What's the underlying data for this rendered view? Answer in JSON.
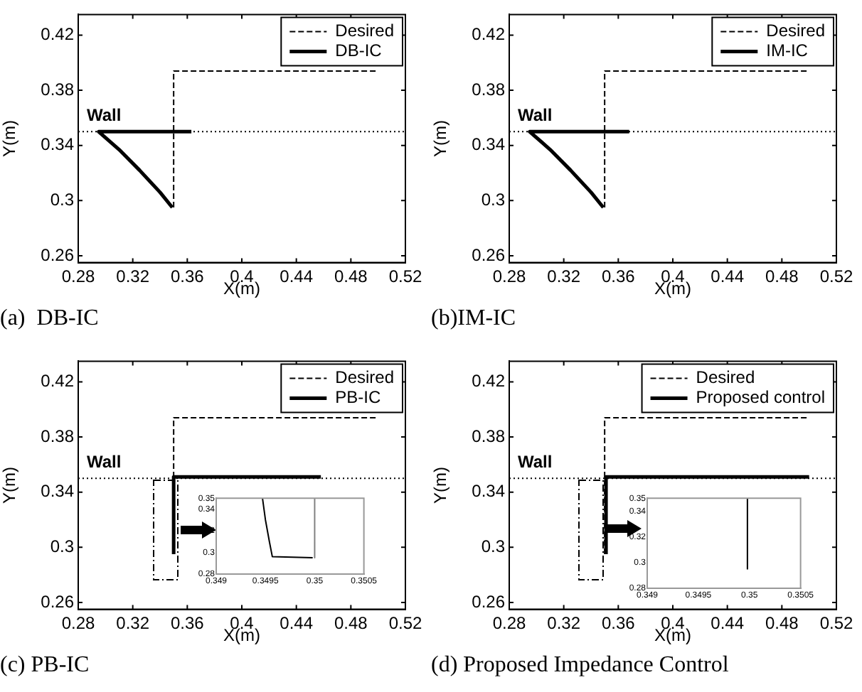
{
  "chart_data": [
    {
      "type": "line",
      "title": "(a)  DB-IC",
      "xlabel": "X(m)",
      "ylabel": "Y(m)",
      "xlim": [
        0.28,
        0.52
      ],
      "xticks": [
        0.28,
        0.32,
        0.36,
        0.4,
        0.44,
        0.48,
        0.52
      ],
      "ylim": [
        0.255,
        0.435
      ],
      "yticks": [
        0.26,
        0.3,
        0.34,
        0.38,
        0.42
      ],
      "legend": "top right",
      "ref_lines": [
        {
          "axis": "y",
          "value": 0.35,
          "label": "Wall",
          "color": "#000000",
          "line_style": "dotted"
        }
      ],
      "series": [
        {
          "name": "Desired",
          "color": "#000000",
          "line_style": "dashed",
          "x": [
            0.35,
            0.35,
            0.5
          ],
          "values": [
            0.295,
            0.394,
            0.394
          ]
        },
        {
          "name": "DB-IC",
          "color": "#000000",
          "line_style": "solid",
          "x": [
            0.349,
            0.34,
            0.325,
            0.31,
            0.295,
            0.363
          ],
          "values": [
            0.295,
            0.306,
            0.322,
            0.337,
            0.35,
            0.35
          ]
        }
      ]
    },
    {
      "type": "line",
      "title": "(b)IM-IC",
      "xlabel": "X(m)",
      "ylabel": "Y(m)",
      "xlim": [
        0.28,
        0.52
      ],
      "xticks": [
        0.28,
        0.32,
        0.36,
        0.4,
        0.44,
        0.48,
        0.52
      ],
      "ylim": [
        0.255,
        0.435
      ],
      "yticks": [
        0.26,
        0.3,
        0.34,
        0.38,
        0.42
      ],
      "legend": "top right",
      "ref_lines": [
        {
          "axis": "y",
          "value": 0.35,
          "label": "Wall",
          "color": "#000000",
          "line_style": "dotted"
        }
      ],
      "series": [
        {
          "name": "Desired",
          "color": "#000000",
          "line_style": "dashed",
          "x": [
            0.35,
            0.35,
            0.5
          ],
          "values": [
            0.295,
            0.394,
            0.394
          ]
        },
        {
          "name": "IM-IC",
          "color": "#000000",
          "line_style": "solid",
          "x": [
            0.349,
            0.34,
            0.325,
            0.31,
            0.295,
            0.368
          ],
          "values": [
            0.295,
            0.306,
            0.322,
            0.337,
            0.35,
            0.35
          ]
        }
      ]
    },
    {
      "type": "line",
      "title": "(c) PB-IC",
      "xlabel": "X(m)",
      "ylabel": "Y(m)",
      "xlim": [
        0.28,
        0.52
      ],
      "xticks": [
        0.28,
        0.32,
        0.36,
        0.4,
        0.44,
        0.48,
        0.52
      ],
      "ylim": [
        0.255,
        0.435
      ],
      "yticks": [
        0.26,
        0.3,
        0.34,
        0.38,
        0.42
      ],
      "legend": "top right",
      "ref_lines": [
        {
          "axis": "y",
          "value": 0.35,
          "label": "Wall",
          "color": "#000000",
          "line_style": "dotted"
        }
      ],
      "series": [
        {
          "name": "Desired",
          "color": "#000000",
          "line_style": "dashed",
          "x": [
            0.35,
            0.35,
            0.5
          ],
          "values": [
            0.295,
            0.394,
            0.394
          ]
        },
        {
          "name": "PB-IC",
          "color": "#000000",
          "line_style": "solid",
          "x": [
            0.35,
            0.35,
            0.458
          ],
          "values": [
            0.295,
            0.351,
            0.351
          ]
        }
      ]
    },
    {
      "type": "line",
      "xlim": [
        0.349,
        0.3505
      ],
      "xticks": [
        0.349,
        0.3495,
        0.35,
        0.3505
      ],
      "ylim": [
        0.28,
        0.35
      ],
      "yticks": [
        0.28,
        0.3,
        0.32,
        0.34,
        0.35
      ],
      "series": [
        {
          "color": "#000000",
          "line_style": "solid",
          "x": [
            0.34947,
            0.3495,
            0.34954,
            0.34957,
            0.34998
          ],
          "values": [
            0.35,
            0.33,
            0.31,
            0.296,
            0.295
          ]
        },
        {
          "color": "#808080",
          "line_style": "solid",
          "x": [
            0.35,
            0.35
          ],
          "values": [
            0.35,
            0.295
          ]
        }
      ]
    },
    {
      "type": "line",
      "title": "(d) Proposed Impedance Control",
      "xlabel": "X(m)",
      "ylabel": "Y(m)",
      "xlim": [
        0.28,
        0.52
      ],
      "xticks": [
        0.28,
        0.32,
        0.36,
        0.4,
        0.44,
        0.48,
        0.52
      ],
      "ylim": [
        0.255,
        0.435
      ],
      "yticks": [
        0.26,
        0.3,
        0.34,
        0.38,
        0.42
      ],
      "legend": "top right",
      "ref_lines": [
        {
          "axis": "y",
          "value": 0.35,
          "label": "Wall",
          "color": "#000000",
          "line_style": "dotted"
        }
      ],
      "series": [
        {
          "name": "Desired",
          "color": "#000000",
          "line_style": "dashed",
          "x": [
            0.35,
            0.35,
            0.5
          ],
          "values": [
            0.295,
            0.394,
            0.394
          ]
        },
        {
          "name": "Proposed control",
          "color": "#000000",
          "line_style": "solid",
          "x": [
            0.351,
            0.351,
            0.5
          ],
          "values": [
            0.295,
            0.351,
            0.351
          ]
        }
      ]
    },
    {
      "type": "line",
      "xlim": [
        0.349,
        0.3505
      ],
      "xticks": [
        0.349,
        0.3495,
        0.35,
        0.3505
      ],
      "ylim": [
        0.28,
        0.35
      ],
      "yticks": [
        0.28,
        0.3,
        0.32,
        0.34,
        0.35
      ],
      "series": [
        {
          "color": "#000000",
          "line_style": "solid",
          "x": [
            0.34998,
            0.34998
          ],
          "values": [
            0.35,
            0.295
          ]
        }
      ]
    }
  ]
}
